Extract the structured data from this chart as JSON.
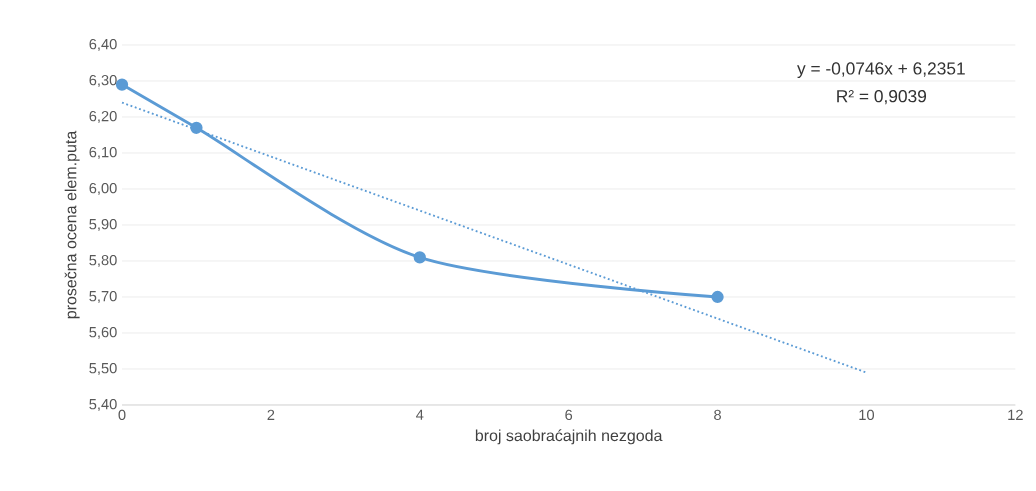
{
  "chart_data": {
    "type": "line",
    "xlabel": "broj saobraćajnih nezgoda",
    "ylabel": "prosečna ocena elem.puta",
    "series": [
      {
        "color": "#5b9bd5",
        "x": [
          0,
          1,
          4,
          8
        ],
        "values": [
          6.29,
          6.17,
          5.81,
          5.7
        ],
        "marker": "circle",
        "line_style": "solid"
      },
      {
        "type": "line",
        "color": "#5b9bd5",
        "x": [
          0,
          10
        ],
        "values": [
          6.24,
          5.49
        ],
        "marker": "none",
        "line_style": "dotted"
      }
    ],
    "annotations": [
      "y = -0,0746x + 6,2351",
      "R² = 0,9039"
    ],
    "xlim": [
      0,
      12
    ],
    "xticks": [
      0,
      2,
      4,
      6,
      8,
      10,
      12
    ],
    "ylim": [
      5.4,
      6.4
    ],
    "yticks": [
      {
        "value": 5.4,
        "label": "5,40"
      },
      {
        "value": 5.5,
        "label": "5,50"
      },
      {
        "value": 5.6,
        "label": "5,60"
      },
      {
        "value": 5.7,
        "label": "5,70"
      },
      {
        "value": 5.8,
        "label": "5,80"
      },
      {
        "value": 5.9,
        "label": "5,90"
      },
      {
        "value": 6.0,
        "label": "6,00"
      },
      {
        "value": 6.1,
        "label": "6,10"
      },
      {
        "value": 6.2,
        "label": "6,20"
      },
      {
        "value": 6.3,
        "label": "6,30"
      },
      {
        "value": 6.4,
        "label": "6,40"
      }
    ],
    "grid": "y"
  }
}
